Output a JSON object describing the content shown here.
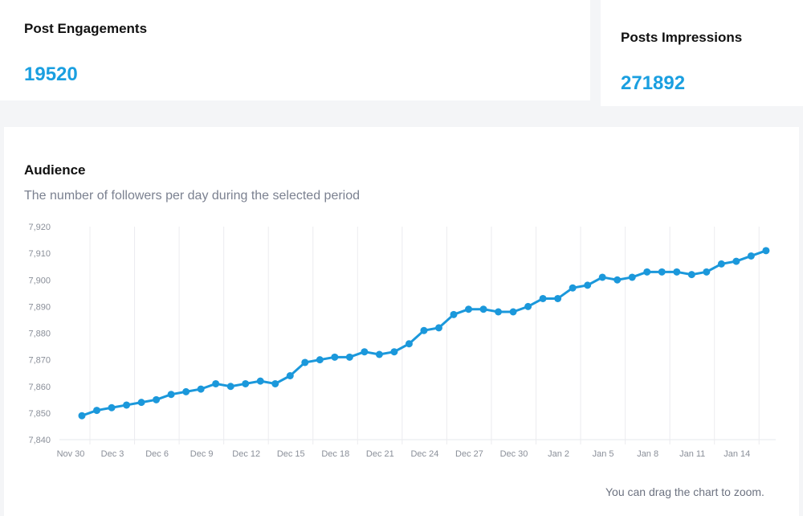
{
  "cards": [
    {
      "title": "Post Engagements",
      "value": "19520"
    },
    {
      "title": "Posts Impressions",
      "value": "271892"
    }
  ],
  "audience": {
    "title": "Audience",
    "subtitle": "The number of followers per day during the selected period",
    "hint": "You can drag the chart to zoom."
  },
  "colors": {
    "accent": "#1a9fe0",
    "line": "#1b98db"
  },
  "chart_data": {
    "type": "line",
    "title": "",
    "xlabel": "",
    "ylabel": "",
    "ylim": [
      7840,
      7920
    ],
    "yticks": [
      "7,840",
      "7,850",
      "7,860",
      "7,870",
      "7,880",
      "7,890",
      "7,900",
      "7,910",
      "7,920"
    ],
    "xtick_labels": [
      "Nov 30",
      "Dec 3",
      "Dec 6",
      "Dec 9",
      "Dec 12",
      "Dec 15",
      "Dec 18",
      "Dec 21",
      "Dec 24",
      "Dec 27",
      "Dec 30",
      "Jan 2",
      "Jan 5",
      "Jan 8",
      "Jan 11",
      "Jan 14"
    ],
    "x_start": "Nov 30",
    "x_end": "Jan 15",
    "grid": "vertical",
    "values": [
      7849,
      7851,
      7852,
      7853,
      7854,
      7855,
      7857,
      7858,
      7859,
      7861,
      7860,
      7861,
      7862,
      7861,
      7864,
      7869,
      7870,
      7871,
      7871,
      7873,
      7872,
      7873,
      7876,
      7881,
      7882,
      7887,
      7889,
      7889,
      7888,
      7888,
      7890,
      7893,
      7893,
      7897,
      7898,
      7901,
      7900,
      7901,
      7903,
      7903,
      7903,
      7902,
      7903,
      7906,
      7907,
      7909,
      7911
    ]
  }
}
